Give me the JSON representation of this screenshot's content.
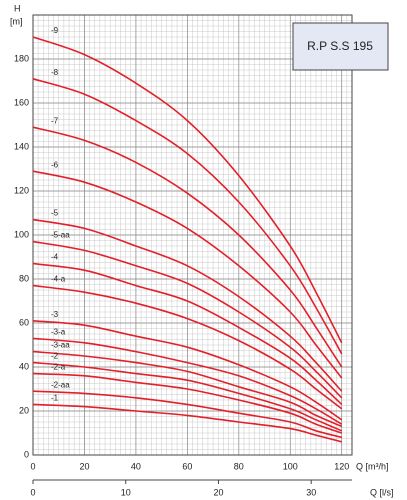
{
  "chart_data": {
    "type": "line",
    "title": "R.P S.S 195",
    "ylabel": "H",
    "ylabel_unit": "[m]",
    "xlabel": "Q [m³/h]",
    "x2label": "Q [l/s]",
    "x": [
      0,
      20,
      40,
      60,
      80,
      100,
      110,
      120
    ],
    "xlim": [
      0,
      124
    ],
    "xticks": [
      0,
      20,
      40,
      60,
      80,
      100,
      120
    ],
    "x2lim": [
      0,
      34.4
    ],
    "x2ticks": [
      0,
      10,
      20,
      30
    ],
    "ylim": [
      0,
      200
    ],
    "yticks": [
      0,
      20,
      40,
      60,
      80,
      100,
      120,
      140,
      160,
      180
    ],
    "grid": true,
    "series": [
      {
        "name": "-9",
        "color": "#e3202a",
        "values": [
          190,
          182,
          169,
          152,
          127,
          95,
          74,
          51
        ]
      },
      {
        "name": "-8",
        "color": "#e3202a",
        "values": [
          171,
          164,
          152,
          137,
          115,
          86,
          67,
          46
        ]
      },
      {
        "name": "-7",
        "color": "#e3202a",
        "values": [
          149,
          143,
          133,
          119,
          100,
          75,
          58,
          40
        ]
      },
      {
        "name": "-6",
        "color": "#e3202a",
        "values": [
          129,
          124,
          115,
          103,
          86,
          65,
          50,
          35
        ]
      },
      {
        "name": "-5",
        "color": "#e3202a",
        "values": [
          107,
          103,
          95,
          86,
          72,
          54,
          42,
          29
        ]
      },
      {
        "name": "-5-aa",
        "color": "#e3202a",
        "values": [
          97,
          93,
          86,
          78,
          65,
          49,
          38,
          26
        ]
      },
      {
        "name": "-4",
        "color": "#e3202a",
        "values": [
          87,
          84,
          77,
          70,
          58,
          44,
          34,
          23
        ]
      },
      {
        "name": "-4-a",
        "color": "#e3202a",
        "values": [
          77,
          74,
          69,
          62,
          52,
          39,
          30,
          21
        ]
      },
      {
        "name": "-3",
        "color": "#e3202a",
        "values": [
          61,
          59,
          54,
          49,
          41,
          31,
          24,
          16
        ]
      },
      {
        "name": "-3-a",
        "color": "#e3202a",
        "values": [
          53,
          51,
          47,
          42,
          36,
          27,
          21,
          14
        ]
      },
      {
        "name": "-3-aa",
        "color": "#e3202a",
        "values": [
          47,
          45,
          42,
          38,
          31,
          24,
          18,
          13
        ]
      },
      {
        "name": "-2",
        "color": "#e3202a",
        "values": [
          42,
          40,
          37,
          34,
          28,
          21,
          16,
          11
        ]
      },
      {
        "name": "-2-a",
        "color": "#e3202a",
        "values": [
          37,
          36,
          33,
          30,
          25,
          19,
          14,
          10
        ]
      },
      {
        "name": "-2-aa",
        "color": "#e3202a",
        "values": [
          29,
          28,
          26,
          23,
          19,
          15,
          11,
          8
        ]
      },
      {
        "name": "-1",
        "color": "#e3202a",
        "values": [
          23,
          22,
          20,
          18,
          15,
          12,
          9,
          6
        ]
      }
    ]
  }
}
